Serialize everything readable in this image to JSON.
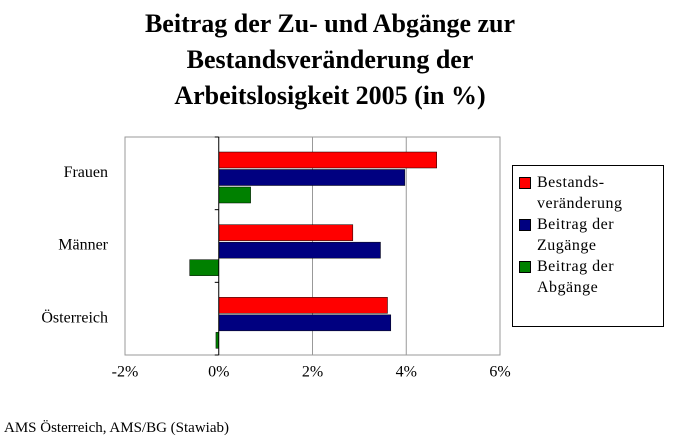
{
  "chart_data": {
    "type": "hbar",
    "title": "Beitrag der Zu- und Abgänge zur Bestandsveränderung der Arbeitslosigkeit 2005 (in %)",
    "source": "AMS Österreich, AMS/BG (Stawiab)",
    "categories": [
      "Frauen",
      "Männer",
      "Österreich"
    ],
    "series": [
      {
        "name": "Bestands-veränderung",
        "color": "#ff0000",
        "values": [
          4.65,
          2.86,
          3.6
        ]
      },
      {
        "name": "Beitrag der Zugänge",
        "color": "#000080",
        "values": [
          3.97,
          3.45,
          3.67
        ]
      },
      {
        "name": "Beitrag der Abgänge",
        "color": "#008000",
        "values": [
          0.68,
          -0.62,
          -0.06
        ]
      }
    ],
    "xlim": [
      -2,
      6
    ],
    "xticks": [
      {
        "value": -2,
        "label": "-2%"
      },
      {
        "value": 0,
        "label": "0%"
      },
      {
        "value": 2,
        "label": "2%"
      },
      {
        "value": 4,
        "label": "4%"
      },
      {
        "value": 6,
        "label": "6%"
      }
    ],
    "grid": true
  }
}
